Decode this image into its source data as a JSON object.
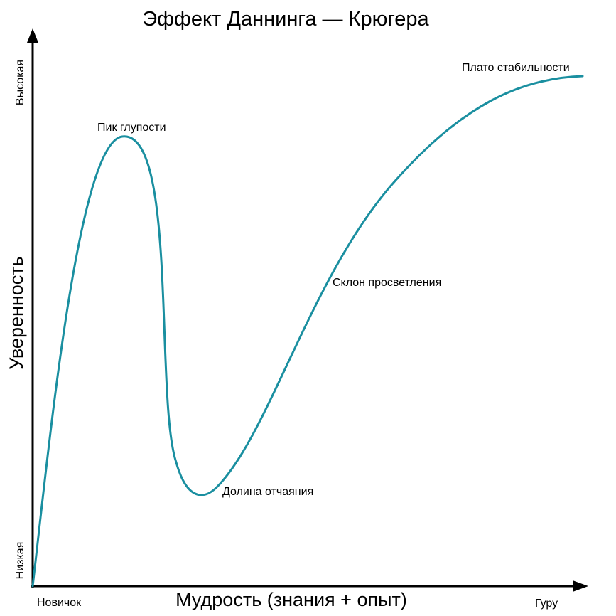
{
  "diagram": {
    "title": "Эффект Даннинга — Крюгера",
    "x_axis": {
      "title": "Мудрость (знания + опыт)",
      "start_label": "Новичок",
      "end_label": "Гуру"
    },
    "y_axis": {
      "title": "Уверенность",
      "low_label": "Низкая",
      "high_label": "Высокая"
    },
    "stages": [
      {
        "name": "peak",
        "label": "Пик глупости"
      },
      {
        "name": "valley",
        "label": "Долина отчаяния"
      },
      {
        "name": "slope",
        "label": "Склон просветления"
      },
      {
        "name": "plateau",
        "label": "Плато стабильности"
      }
    ],
    "colors": {
      "curve": "#1a8fa0",
      "axes": "#000000",
      "text": "#000000"
    }
  }
}
